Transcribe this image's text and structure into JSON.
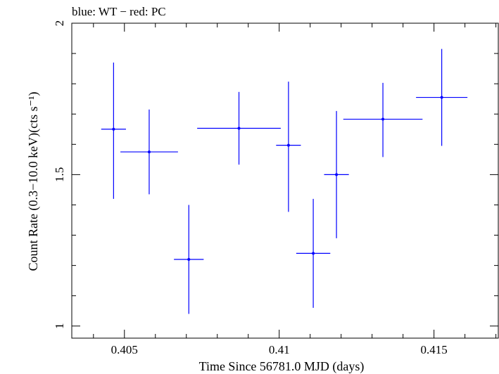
{
  "chart_data": {
    "type": "scatter",
    "title": "blue: WT − red: PC",
    "xlabel": "Time Since 56781.0 MJD (days)",
    "ylabel": "Count Rate (0.3−10.0 keV)(cts s⁻¹)",
    "xlim": [
      0.4033,
      0.4171
    ],
    "ylim": [
      0.96,
      2.0
    ],
    "x_ticks": [
      {
        "value": 0.405,
        "label": "0.405"
      },
      {
        "value": 0.41,
        "label": "0.41"
      },
      {
        "value": 0.415,
        "label": "0.415"
      }
    ],
    "y_ticks": [
      {
        "value": 1,
        "label": "1"
      },
      {
        "value": 1.5,
        "label": "1.5"
      },
      {
        "value": 2,
        "label": "2"
      }
    ],
    "grid": false,
    "legend": "none",
    "series": [
      {
        "color": "#0000ff",
        "points": [
          {
            "x": 0.40465,
            "y": 1.65,
            "xerr": 0.0004,
            "yerr_low": 0.23,
            "yerr_high": 0.22
          },
          {
            "x": 0.4058,
            "y": 1.575,
            "xerr": 0.00093,
            "yerr_low": 0.14,
            "yerr_high": 0.14
          },
          {
            "x": 0.40708,
            "y": 1.22,
            "xerr": 0.00048,
            "yerr_low": 0.18,
            "yerr_high": 0.18
          },
          {
            "x": 0.4087,
            "y": 1.653,
            "xerr": 0.00135,
            "yerr_low": 0.12,
            "yerr_high": 0.12
          },
          {
            "x": 0.4103,
            "y": 1.597,
            "xerr": 0.0004,
            "yerr_low": 0.22,
            "yerr_high": 0.21
          },
          {
            "x": 0.4111,
            "y": 1.24,
            "xerr": 0.00055,
            "yerr_low": 0.18,
            "yerr_high": 0.18
          },
          {
            "x": 0.41185,
            "y": 1.5,
            "xerr": 0.0004,
            "yerr_low": 0.21,
            "yerr_high": 0.21
          },
          {
            "x": 0.41335,
            "y": 1.683,
            "xerr": 0.00128,
            "yerr_low": 0.125,
            "yerr_high": 0.12
          },
          {
            "x": 0.41525,
            "y": 1.755,
            "xerr": 0.00083,
            "yerr_low": 0.16,
            "yerr_high": 0.16
          }
        ]
      }
    ]
  }
}
